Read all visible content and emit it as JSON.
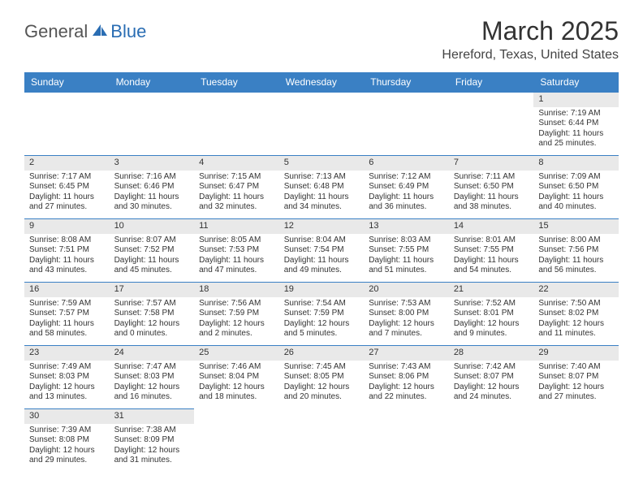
{
  "brand": {
    "part1": "General",
    "part2": "Blue"
  },
  "title": "March 2025",
  "location": "Hereford, Texas, United States",
  "colors": {
    "header_bg": "#3a80c4",
    "header_text": "#ffffff",
    "cell_border": "#3a80c4",
    "daynum_bg": "#e9e9e9",
    "brand_accent": "#2a6db3"
  },
  "weekdays": [
    "Sunday",
    "Monday",
    "Tuesday",
    "Wednesday",
    "Thursday",
    "Friday",
    "Saturday"
  ],
  "weeks": [
    [
      null,
      null,
      null,
      null,
      null,
      null,
      {
        "n": "1",
        "sr": "Sunrise: 7:19 AM",
        "ss": "Sunset: 6:44 PM",
        "d1": "Daylight: 11 hours",
        "d2": "and 25 minutes."
      }
    ],
    [
      {
        "n": "2",
        "sr": "Sunrise: 7:17 AM",
        "ss": "Sunset: 6:45 PM",
        "d1": "Daylight: 11 hours",
        "d2": "and 27 minutes."
      },
      {
        "n": "3",
        "sr": "Sunrise: 7:16 AM",
        "ss": "Sunset: 6:46 PM",
        "d1": "Daylight: 11 hours",
        "d2": "and 30 minutes."
      },
      {
        "n": "4",
        "sr": "Sunrise: 7:15 AM",
        "ss": "Sunset: 6:47 PM",
        "d1": "Daylight: 11 hours",
        "d2": "and 32 minutes."
      },
      {
        "n": "5",
        "sr": "Sunrise: 7:13 AM",
        "ss": "Sunset: 6:48 PM",
        "d1": "Daylight: 11 hours",
        "d2": "and 34 minutes."
      },
      {
        "n": "6",
        "sr": "Sunrise: 7:12 AM",
        "ss": "Sunset: 6:49 PM",
        "d1": "Daylight: 11 hours",
        "d2": "and 36 minutes."
      },
      {
        "n": "7",
        "sr": "Sunrise: 7:11 AM",
        "ss": "Sunset: 6:50 PM",
        "d1": "Daylight: 11 hours",
        "d2": "and 38 minutes."
      },
      {
        "n": "8",
        "sr": "Sunrise: 7:09 AM",
        "ss": "Sunset: 6:50 PM",
        "d1": "Daylight: 11 hours",
        "d2": "and 40 minutes."
      }
    ],
    [
      {
        "n": "9",
        "sr": "Sunrise: 8:08 AM",
        "ss": "Sunset: 7:51 PM",
        "d1": "Daylight: 11 hours",
        "d2": "and 43 minutes."
      },
      {
        "n": "10",
        "sr": "Sunrise: 8:07 AM",
        "ss": "Sunset: 7:52 PM",
        "d1": "Daylight: 11 hours",
        "d2": "and 45 minutes."
      },
      {
        "n": "11",
        "sr": "Sunrise: 8:05 AM",
        "ss": "Sunset: 7:53 PM",
        "d1": "Daylight: 11 hours",
        "d2": "and 47 minutes."
      },
      {
        "n": "12",
        "sr": "Sunrise: 8:04 AM",
        "ss": "Sunset: 7:54 PM",
        "d1": "Daylight: 11 hours",
        "d2": "and 49 minutes."
      },
      {
        "n": "13",
        "sr": "Sunrise: 8:03 AM",
        "ss": "Sunset: 7:55 PM",
        "d1": "Daylight: 11 hours",
        "d2": "and 51 minutes."
      },
      {
        "n": "14",
        "sr": "Sunrise: 8:01 AM",
        "ss": "Sunset: 7:55 PM",
        "d1": "Daylight: 11 hours",
        "d2": "and 54 minutes."
      },
      {
        "n": "15",
        "sr": "Sunrise: 8:00 AM",
        "ss": "Sunset: 7:56 PM",
        "d1": "Daylight: 11 hours",
        "d2": "and 56 minutes."
      }
    ],
    [
      {
        "n": "16",
        "sr": "Sunrise: 7:59 AM",
        "ss": "Sunset: 7:57 PM",
        "d1": "Daylight: 11 hours",
        "d2": "and 58 minutes."
      },
      {
        "n": "17",
        "sr": "Sunrise: 7:57 AM",
        "ss": "Sunset: 7:58 PM",
        "d1": "Daylight: 12 hours",
        "d2": "and 0 minutes."
      },
      {
        "n": "18",
        "sr": "Sunrise: 7:56 AM",
        "ss": "Sunset: 7:59 PM",
        "d1": "Daylight: 12 hours",
        "d2": "and 2 minutes."
      },
      {
        "n": "19",
        "sr": "Sunrise: 7:54 AM",
        "ss": "Sunset: 7:59 PM",
        "d1": "Daylight: 12 hours",
        "d2": "and 5 minutes."
      },
      {
        "n": "20",
        "sr": "Sunrise: 7:53 AM",
        "ss": "Sunset: 8:00 PM",
        "d1": "Daylight: 12 hours",
        "d2": "and 7 minutes."
      },
      {
        "n": "21",
        "sr": "Sunrise: 7:52 AM",
        "ss": "Sunset: 8:01 PM",
        "d1": "Daylight: 12 hours",
        "d2": "and 9 minutes."
      },
      {
        "n": "22",
        "sr": "Sunrise: 7:50 AM",
        "ss": "Sunset: 8:02 PM",
        "d1": "Daylight: 12 hours",
        "d2": "and 11 minutes."
      }
    ],
    [
      {
        "n": "23",
        "sr": "Sunrise: 7:49 AM",
        "ss": "Sunset: 8:03 PM",
        "d1": "Daylight: 12 hours",
        "d2": "and 13 minutes."
      },
      {
        "n": "24",
        "sr": "Sunrise: 7:47 AM",
        "ss": "Sunset: 8:03 PM",
        "d1": "Daylight: 12 hours",
        "d2": "and 16 minutes."
      },
      {
        "n": "25",
        "sr": "Sunrise: 7:46 AM",
        "ss": "Sunset: 8:04 PM",
        "d1": "Daylight: 12 hours",
        "d2": "and 18 minutes."
      },
      {
        "n": "26",
        "sr": "Sunrise: 7:45 AM",
        "ss": "Sunset: 8:05 PM",
        "d1": "Daylight: 12 hours",
        "d2": "and 20 minutes."
      },
      {
        "n": "27",
        "sr": "Sunrise: 7:43 AM",
        "ss": "Sunset: 8:06 PM",
        "d1": "Daylight: 12 hours",
        "d2": "and 22 minutes."
      },
      {
        "n": "28",
        "sr": "Sunrise: 7:42 AM",
        "ss": "Sunset: 8:07 PM",
        "d1": "Daylight: 12 hours",
        "d2": "and 24 minutes."
      },
      {
        "n": "29",
        "sr": "Sunrise: 7:40 AM",
        "ss": "Sunset: 8:07 PM",
        "d1": "Daylight: 12 hours",
        "d2": "and 27 minutes."
      }
    ],
    [
      {
        "n": "30",
        "sr": "Sunrise: 7:39 AM",
        "ss": "Sunset: 8:08 PM",
        "d1": "Daylight: 12 hours",
        "d2": "and 29 minutes."
      },
      {
        "n": "31",
        "sr": "Sunrise: 7:38 AM",
        "ss": "Sunset: 8:09 PM",
        "d1": "Daylight: 12 hours",
        "d2": "and 31 minutes."
      },
      null,
      null,
      null,
      null,
      null
    ]
  ]
}
